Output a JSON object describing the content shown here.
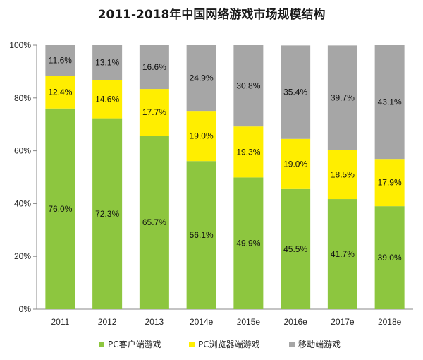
{
  "chart_data": {
    "type": "bar",
    "stacked": true,
    "title": "2011-2018年中国网络游戏市场规模结构",
    "categories": [
      "2011",
      "2012",
      "2013",
      "2014e",
      "2015e",
      "2016e",
      "2017e",
      "2018e"
    ],
    "series": [
      {
        "name": "PC客户端游戏",
        "color": "#8dc63f",
        "values": [
          76.0,
          72.3,
          65.7,
          56.1,
          49.9,
          45.5,
          41.7,
          39.0
        ],
        "labels": [
          "76.0%",
          "72.3%",
          "65.7%",
          "56.1%",
          "49.9%",
          "45.5%",
          "41.7%",
          "39.0%"
        ]
      },
      {
        "name": "PC浏览器端游戏",
        "color": "#ffee00",
        "values": [
          12.4,
          14.6,
          17.7,
          19.0,
          19.3,
          19.0,
          18.5,
          17.9
        ],
        "labels": [
          "12.4%",
          "14.6%",
          "17.7%",
          "19.0%",
          "19.3%",
          "19.0%",
          "18.5%",
          "17.9%"
        ]
      },
      {
        "name": "移动端游戏",
        "color": "#a6a6a6",
        "values": [
          11.6,
          13.1,
          16.6,
          24.9,
          30.8,
          35.4,
          39.7,
          43.1
        ],
        "labels": [
          "11.6%",
          "13.1%",
          "16.6%",
          "24.9%",
          "30.8%",
          "35.4%",
          "39.7%",
          "43.1%"
        ]
      }
    ],
    "ylim": [
      0,
      100
    ],
    "yticks": [
      "0%",
      "20%",
      "40%",
      "60%",
      "80%",
      "100%"
    ],
    "ytick_values": [
      0,
      20,
      40,
      60,
      80,
      100
    ],
    "grid": false,
    "legend_position": "bottom"
  }
}
